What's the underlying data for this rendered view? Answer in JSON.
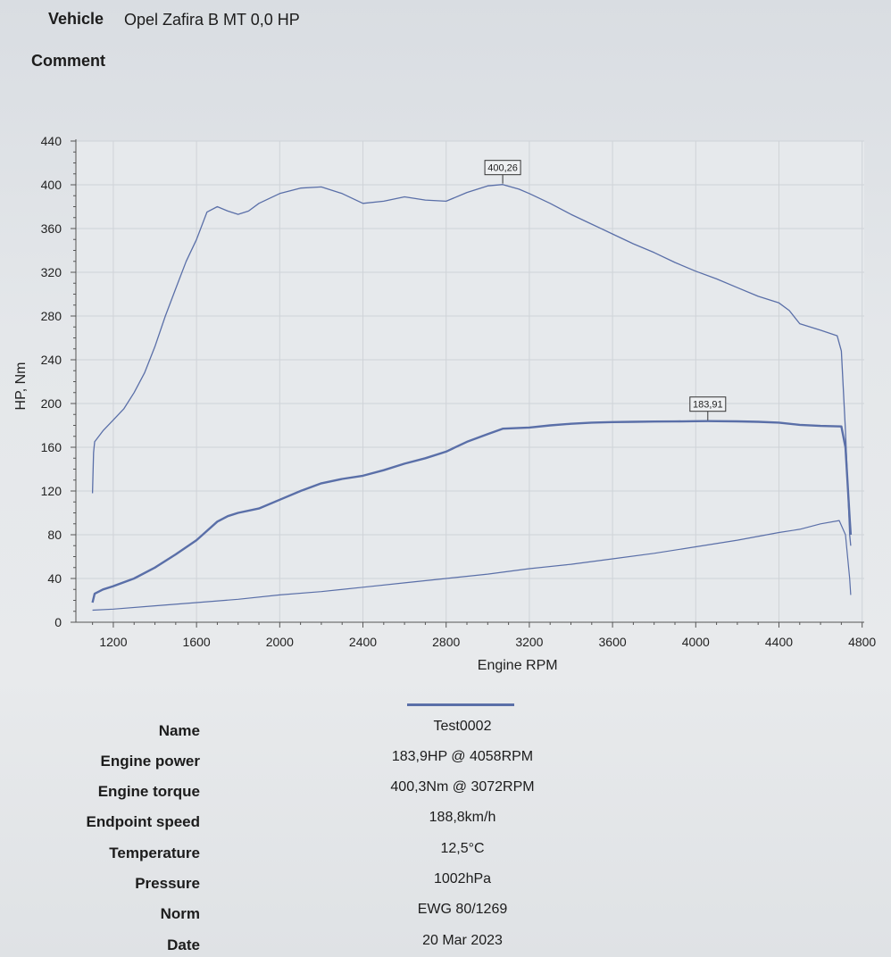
{
  "header": {
    "vehicle_label": "Vehicle",
    "vehicle_value": "Opel Zafira B MT 0,0 HP",
    "comment_label": "Comment"
  },
  "chart_data": {
    "type": "line",
    "xlabel": "Engine RPM",
    "ylabel": "HP, Nm",
    "xlim": [
      1020,
      4810
    ],
    "ylim": [
      0,
      440
    ],
    "x_ticks": [
      1200,
      1600,
      2000,
      2400,
      2800,
      3200,
      3600,
      4000,
      4400,
      4800
    ],
    "y_ticks": [
      0,
      40,
      80,
      120,
      160,
      200,
      240,
      280,
      320,
      360,
      400,
      440
    ],
    "grid": true,
    "line_color": "#5a6fa8",
    "series": [
      {
        "key": "torque",
        "stroke_width": 1.3,
        "peak_label": "400,26",
        "peak": [
          3072,
          400.26
        ],
        "points": [
          [
            1100,
            118
          ],
          [
            1105,
            155
          ],
          [
            1110,
            165
          ],
          [
            1150,
            175
          ],
          [
            1200,
            185
          ],
          [
            1250,
            195
          ],
          [
            1300,
            210
          ],
          [
            1350,
            228
          ],
          [
            1400,
            252
          ],
          [
            1450,
            280
          ],
          [
            1500,
            305
          ],
          [
            1550,
            330
          ],
          [
            1600,
            350
          ],
          [
            1650,
            375
          ],
          [
            1700,
            380
          ],
          [
            1750,
            376
          ],
          [
            1800,
            373
          ],
          [
            1850,
            376
          ],
          [
            1900,
            383
          ],
          [
            2000,
            392
          ],
          [
            2100,
            397
          ],
          [
            2200,
            398
          ],
          [
            2300,
            392
          ],
          [
            2400,
            383
          ],
          [
            2500,
            385
          ],
          [
            2600,
            389
          ],
          [
            2700,
            386
          ],
          [
            2800,
            385
          ],
          [
            2900,
            393
          ],
          [
            3000,
            399
          ],
          [
            3072,
            400.26
          ],
          [
            3150,
            396
          ],
          [
            3200,
            392
          ],
          [
            3300,
            383
          ],
          [
            3400,
            373
          ],
          [
            3500,
            364
          ],
          [
            3600,
            355
          ],
          [
            3700,
            346
          ],
          [
            3800,
            338
          ],
          [
            3900,
            329
          ],
          [
            4000,
            321
          ],
          [
            4100,
            314
          ],
          [
            4200,
            306
          ],
          [
            4300,
            298
          ],
          [
            4400,
            292
          ],
          [
            4450,
            285
          ],
          [
            4500,
            273
          ],
          [
            4600,
            267
          ],
          [
            4680,
            262
          ],
          [
            4700,
            248
          ],
          [
            4720,
            175
          ],
          [
            4740,
            80
          ],
          [
            4745,
            70
          ]
        ]
      },
      {
        "key": "power",
        "stroke_width": 2.4,
        "peak_label": "183,91",
        "peak": [
          4058,
          183.91
        ],
        "points": [
          [
            1100,
            18
          ],
          [
            1110,
            26
          ],
          [
            1150,
            30
          ],
          [
            1200,
            33
          ],
          [
            1300,
            40
          ],
          [
            1400,
            50
          ],
          [
            1500,
            62
          ],
          [
            1600,
            75
          ],
          [
            1700,
            92
          ],
          [
            1750,
            97
          ],
          [
            1800,
            100
          ],
          [
            1900,
            104
          ],
          [
            2000,
            112
          ],
          [
            2100,
            120
          ],
          [
            2200,
            127
          ],
          [
            2300,
            131
          ],
          [
            2400,
            134
          ],
          [
            2500,
            139
          ],
          [
            2600,
            145
          ],
          [
            2700,
            150
          ],
          [
            2800,
            156
          ],
          [
            2900,
            165
          ],
          [
            3000,
            172
          ],
          [
            3072,
            177
          ],
          [
            3200,
            178
          ],
          [
            3300,
            180
          ],
          [
            3400,
            181.5
          ],
          [
            3500,
            182.5
          ],
          [
            3600,
            183
          ],
          [
            3700,
            183.3
          ],
          [
            3800,
            183.5
          ],
          [
            3900,
            183.6
          ],
          [
            4000,
            183.8
          ],
          [
            4058,
            183.91
          ],
          [
            4200,
            183.7
          ],
          [
            4300,
            183.3
          ],
          [
            4400,
            182.5
          ],
          [
            4500,
            180.5
          ],
          [
            4600,
            179.5
          ],
          [
            4700,
            179
          ],
          [
            4720,
            160
          ],
          [
            4740,
            95
          ],
          [
            4745,
            80
          ]
        ]
      },
      {
        "key": "third",
        "stroke_width": 1.2,
        "peak_label": "",
        "points": [
          [
            1100,
            11
          ],
          [
            1200,
            12
          ],
          [
            1400,
            15
          ],
          [
            1600,
            18
          ],
          [
            1800,
            21
          ],
          [
            2000,
            25
          ],
          [
            2200,
            28
          ],
          [
            2400,
            32
          ],
          [
            2600,
            36
          ],
          [
            2800,
            40
          ],
          [
            3000,
            44
          ],
          [
            3200,
            49
          ],
          [
            3400,
            53
          ],
          [
            3600,
            58
          ],
          [
            3800,
            63
          ],
          [
            4000,
            69
          ],
          [
            4200,
            75
          ],
          [
            4400,
            82
          ],
          [
            4500,
            85
          ],
          [
            4600,
            90
          ],
          [
            4690,
            93
          ],
          [
            4720,
            80
          ],
          [
            4740,
            40
          ],
          [
            4745,
            25
          ]
        ]
      }
    ]
  },
  "info": {
    "rows": [
      {
        "label": "Name",
        "value": "Test0002"
      },
      {
        "label": "Engine power",
        "value": "183,9HP @ 4058RPM"
      },
      {
        "label": "Engine torque",
        "value": "400,3Nm @ 3072RPM"
      },
      {
        "label": "Endpoint speed",
        "value": "188,8km/h"
      },
      {
        "label": "Temperature",
        "value": "12,5°C"
      },
      {
        "label": "Pressure",
        "value": "1002hPa"
      },
      {
        "label": "Norm",
        "value": "EWG 80/1269"
      },
      {
        "label": "Date",
        "value": "20 Mar 2023"
      }
    ]
  }
}
